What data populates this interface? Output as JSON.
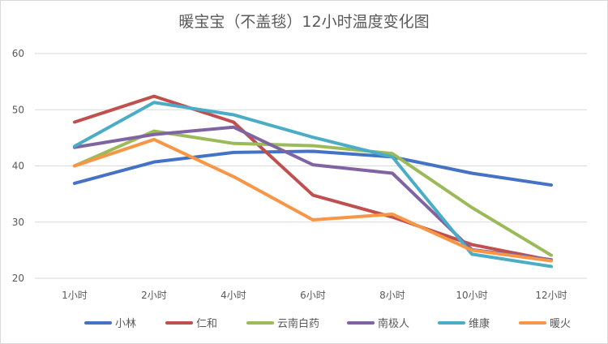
{
  "chart_data": {
    "type": "line",
    "title": "暖宝宝（不盖毯）12小时温度变化图",
    "categories": [
      "1小时",
      "2小时",
      "4小时",
      "6小时",
      "8小时",
      "10小时",
      "12小时"
    ],
    "ylim": [
      20,
      60
    ],
    "yticks": [
      20,
      30,
      40,
      50,
      60
    ],
    "grid": true,
    "legend_position": "bottom",
    "series": [
      {
        "name": "小林",
        "color": "#4472c4",
        "values": [
          36.9,
          40.7,
          42.4,
          42.6,
          41.6,
          38.7,
          36.6
        ]
      },
      {
        "name": "仁和",
        "color": "#c0504d",
        "values": [
          47.8,
          52.4,
          47.8,
          34.8,
          30.9,
          26.0,
          23.2
        ]
      },
      {
        "name": "云南白药",
        "color": "#9bbb59",
        "values": [
          40.0,
          46.2,
          44.0,
          43.6,
          42.2,
          32.6,
          24.1
        ]
      },
      {
        "name": "南极人",
        "color": "#8064a2",
        "values": [
          43.3,
          45.6,
          46.9,
          40.2,
          38.7,
          25.1,
          23.3
        ]
      },
      {
        "name": "维康",
        "color": "#4bacc6",
        "values": [
          43.5,
          51.3,
          49.1,
          45.1,
          41.6,
          24.3,
          22.1
        ]
      },
      {
        "name": "暖火",
        "color": "#f79646",
        "values": [
          40.0,
          44.7,
          38.1,
          30.4,
          31.4,
          25.0,
          23.1
        ]
      }
    ]
  }
}
